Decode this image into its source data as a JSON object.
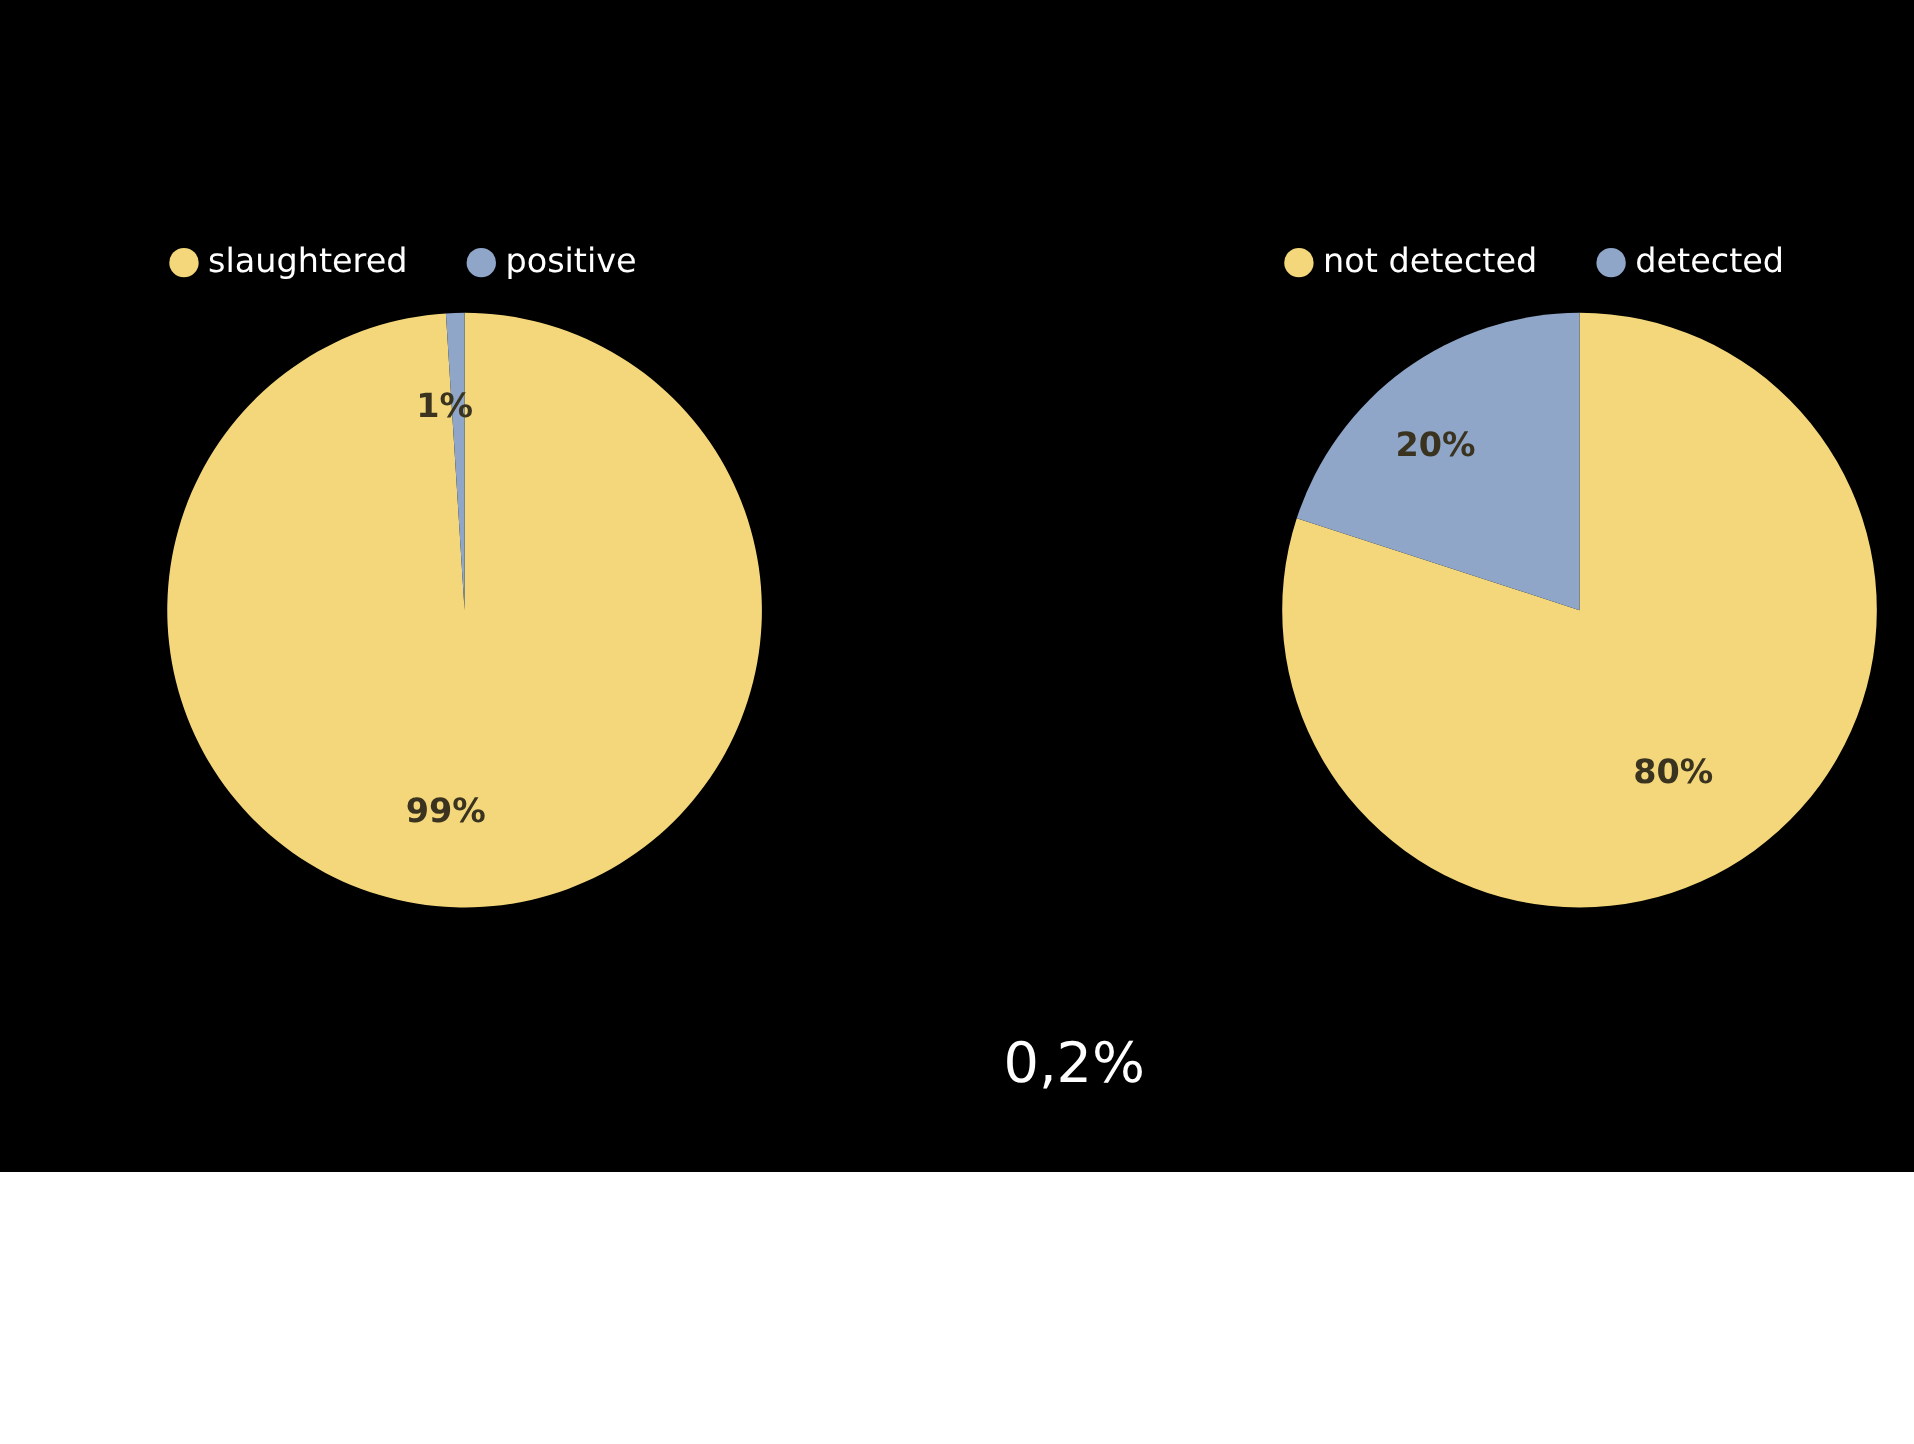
{
  "chart_data": [
    {
      "type": "pie",
      "categories": [
        "slaughtered",
        "positive"
      ],
      "values": [
        99,
        1
      ],
      "colors": [
        "#f3d77a",
        "#8fa6c9"
      ],
      "value_labels": [
        "99%",
        "1%"
      ],
      "legend": "top"
    },
    {
      "type": "pie",
      "categories": [
        "not detected",
        "detected"
      ],
      "values": [
        80,
        20
      ],
      "colors": [
        "#f3d77a",
        "#8fa6c9"
      ],
      "value_labels": [
        "80%",
        "20%"
      ],
      "legend": "top",
      "annotations": [
        "0,2%"
      ]
    }
  ]
}
